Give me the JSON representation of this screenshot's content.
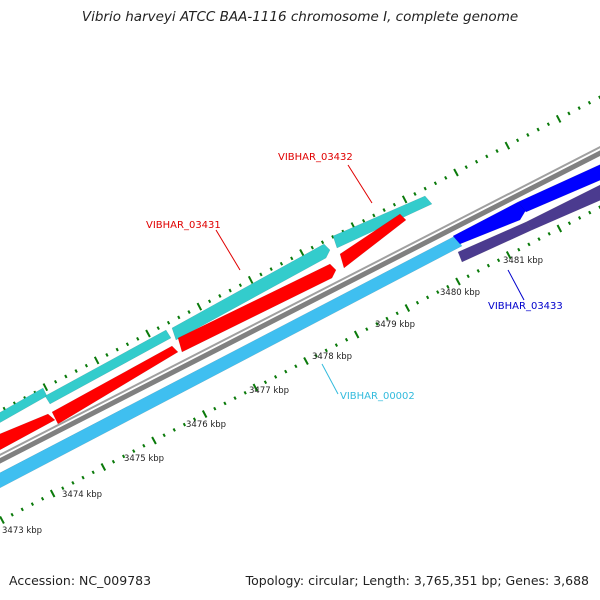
{
  "title": "Vibrio harveyi ATCC BAA-1116 chromosome I, complete genome",
  "footer": {
    "accession": "Accession: NC_009783",
    "summary": "Topology: circular; Length: 3,765,351 bp; Genes: 3,688"
  },
  "colors": {
    "backbone": "#808080",
    "cds_forward_rna": "#33cccc",
    "cds_forward": "#ff0000",
    "gene_reverse": "#3fbff0",
    "gene_blue": "#0000ff",
    "gene_dark": "#4b3b8f",
    "tick_green": "#0a7a0a",
    "label_red": "#e00000",
    "label_blue": "#0000cc",
    "label_cyan": "#33bbdd"
  },
  "tick_labels": [
    "3473 kbp",
    "3474 kbp",
    "3475 kbp",
    "3476 kbp",
    "3477 kbp",
    "3478 kbp",
    "3479 kbp",
    "3480 kbp",
    "3481 kbp"
  ],
  "gene_labels": {
    "g03431": "VIBHAR_03431",
    "g03432": "VIBHAR_03432",
    "g03433": "VIBHAR_03433",
    "g00002": "VIBHAR_00002"
  }
}
